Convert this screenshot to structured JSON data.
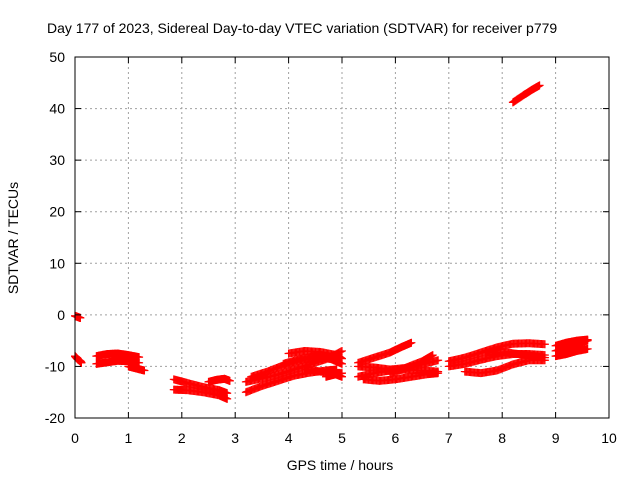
{
  "chart_data": {
    "type": "scatter",
    "title": "Day 177 of 2023, Sidereal Day-to-day VTEC variation (SDTVAR) for receiver p779",
    "xlabel": "GPS time / hours",
    "ylabel": "SDTVAR / TECUs",
    "xlim": [
      0,
      10
    ],
    "ylim": [
      -20,
      50
    ],
    "xticks": [
      "0",
      "1",
      "2",
      "3",
      "4",
      "5",
      "6",
      "7",
      "8",
      "9",
      "10"
    ],
    "yticks": [
      "-20",
      "-10",
      "0",
      "10",
      "20",
      "30",
      "40",
      "50"
    ],
    "grid": true,
    "legend": "none",
    "marker": "+",
    "color": "#ff0000",
    "series": [
      {
        "x": [
          0.0,
          0.05,
          0.1
        ],
        "y": [
          -0.2,
          -0.4,
          -0.6
        ]
      },
      {
        "x": [
          0.0,
          0.05,
          0.1,
          0.12
        ],
        "y": [
          -8.0,
          -8.6,
          -9.0,
          -9.3
        ]
      },
      {
        "x": [
          0.4,
          0.6,
          0.8,
          1.0,
          1.2
        ],
        "y": [
          -9.5,
          -9.2,
          -8.9,
          -9.0,
          -9.3
        ]
      },
      {
        "x": [
          0.4,
          0.6,
          0.8,
          1.0,
          1.2
        ],
        "y": [
          -8.0,
          -7.6,
          -7.5,
          -7.8,
          -8.2
        ]
      },
      {
        "x": [
          1.0,
          1.15,
          1.3
        ],
        "y": [
          -10.0,
          -10.4,
          -10.8
        ]
      },
      {
        "x": [
          1.85,
          2.1,
          2.4,
          2.7,
          2.85
        ],
        "y": [
          -12.5,
          -13.2,
          -14.0,
          -14.6,
          -15.2
        ]
      },
      {
        "x": [
          1.85,
          2.1,
          2.4,
          2.7,
          2.85
        ],
        "y": [
          -14.5,
          -14.6,
          -15.0,
          -15.6,
          -16.3
        ]
      },
      {
        "x": [
          2.5,
          2.65,
          2.8,
          2.9
        ],
        "y": [
          -13.0,
          -12.6,
          -12.4,
          -12.8
        ]
      },
      {
        "x": [
          3.2,
          3.5,
          3.8,
          4.1,
          4.4,
          4.7,
          5.0
        ],
        "y": [
          -13.0,
          -12.3,
          -11.6,
          -10.6,
          -9.6,
          -8.6,
          -7.0
        ]
      },
      {
        "x": [
          3.2,
          3.5,
          3.8,
          4.1,
          4.4,
          4.7,
          4.9
        ],
        "y": [
          -15.0,
          -13.8,
          -12.8,
          -11.8,
          -11.2,
          -10.8,
          -10.6
        ]
      },
      {
        "x": [
          3.3,
          3.6,
          3.9,
          4.2,
          4.5,
          4.8
        ],
        "y": [
          -12.0,
          -11.0,
          -9.8,
          -8.8,
          -8.4,
          -8.5
        ]
      },
      {
        "x": [
          3.9,
          4.2,
          4.5,
          4.8,
          5.0
        ],
        "y": [
          -9.5,
          -8.6,
          -8.0,
          -8.6,
          -9.5
        ]
      },
      {
        "x": [
          4.0,
          4.3,
          4.6,
          4.9,
          5.0
        ],
        "y": [
          -7.5,
          -7.0,
          -7.2,
          -7.8,
          -8.5
        ]
      },
      {
        "x": [
          4.3,
          4.6,
          4.9,
          5.0
        ],
        "y": [
          -10.5,
          -11.0,
          -11.6,
          -12.0
        ]
      },
      {
        "x": [
          4.7,
          4.85,
          5.0
        ],
        "y": [
          -12.0,
          -11.6,
          -11.3
        ]
      },
      {
        "x": [
          5.3,
          5.6,
          5.9,
          6.1,
          6.3
        ],
        "y": [
          -9.3,
          -8.3,
          -7.3,
          -6.3,
          -5.4
        ]
      },
      {
        "x": [
          5.3,
          5.6,
          5.9,
          6.2,
          6.5,
          6.8
        ],
        "y": [
          -12.0,
          -11.3,
          -10.8,
          -10.6,
          -10.8,
          -11.0
        ]
      },
      {
        "x": [
          5.3,
          5.6,
          5.9,
          6.2,
          6.5,
          6.8
        ],
        "y": [
          -10.0,
          -10.2,
          -10.6,
          -10.3,
          -9.6,
          -8.8
        ]
      },
      {
        "x": [
          5.4,
          5.7,
          6.0,
          6.3,
          6.6,
          6.8
        ],
        "y": [
          -12.5,
          -12.8,
          -12.5,
          -12.0,
          -11.5,
          -11.3
        ]
      },
      {
        "x": [
          5.9,
          6.2,
          6.5,
          6.7
        ],
        "y": [
          -11.5,
          -10.2,
          -9.0,
          -7.8
        ]
      },
      {
        "x": [
          7.0,
          7.3,
          7.6,
          7.9,
          8.2,
          8.5,
          8.8
        ],
        "y": [
          -9.0,
          -8.3,
          -7.3,
          -6.3,
          -5.6,
          -5.5,
          -5.7
        ]
      },
      {
        "x": [
          7.0,
          7.3,
          7.6,
          7.9,
          8.2,
          8.5,
          8.8
        ],
        "y": [
          -10.0,
          -9.5,
          -8.7,
          -8.0,
          -7.6,
          -7.6,
          -7.8
        ]
      },
      {
        "x": [
          7.3,
          7.6,
          7.9,
          8.2,
          8.5,
          8.8
        ],
        "y": [
          -11.0,
          -11.3,
          -10.8,
          -9.6,
          -8.8,
          -8.8
        ]
      },
      {
        "x": [
          7.7,
          8.0,
          8.3,
          8.6,
          8.8
        ],
        "y": [
          -7.3,
          -7.2,
          -7.6,
          -8.0,
          -8.3
        ]
      },
      {
        "x": [
          8.2,
          8.4,
          8.55,
          8.7
        ],
        "y": [
          41.2,
          42.6,
          43.6,
          44.5
        ]
      },
      {
        "x": [
          9.0,
          9.2,
          9.4,
          9.6
        ],
        "y": [
          -7.0,
          -6.3,
          -5.6,
          -5.0
        ]
      },
      {
        "x": [
          9.0,
          9.2,
          9.4,
          9.6
        ],
        "y": [
          -8.0,
          -7.6,
          -7.0,
          -6.6
        ]
      },
      {
        "x": [
          9.0,
          9.2,
          9.4,
          9.6
        ],
        "y": [
          -6.0,
          -5.4,
          -5.0,
          -4.8
        ]
      },
      {
        "x": [
          9.1,
          9.3,
          9.5
        ],
        "y": [
          -7.6,
          -7.0,
          -6.4
        ]
      }
    ]
  }
}
